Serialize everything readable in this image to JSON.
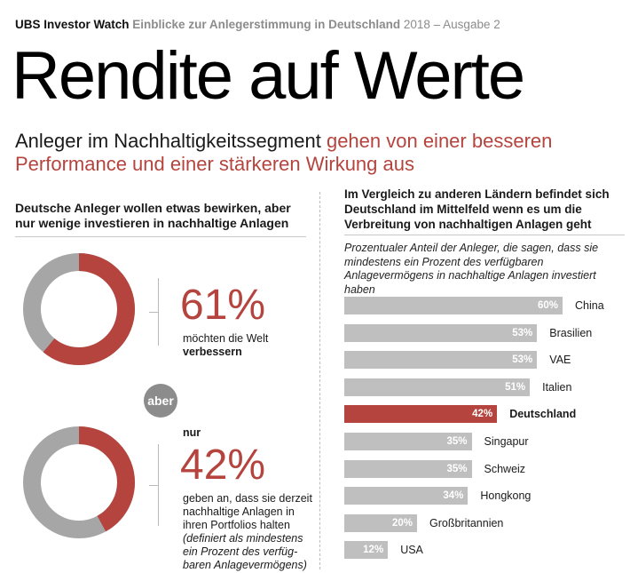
{
  "header": {
    "brand": "UBS Investor Watch",
    "topic": "Einblicke zur Anlegerstimmung in Deutschland",
    "issue": "2018 – Ausgabe 2"
  },
  "title": "Rendite auf Werte",
  "subtitle": {
    "part1": "Anleger im Nachhaltigkeitssegment ",
    "part2": "gehen von einer besseren Performance und einer stärkeren Wirkung aus"
  },
  "left": {
    "heading": "Deutsche Anleger wollen etwas bewirken, aber nur wenige investieren in nachhaltige Anlagen",
    "stat1": {
      "value": "61%",
      "text": "möchten die Welt",
      "bold": "verbessern",
      "fraction": 0.61
    },
    "connector": "aber",
    "stat2": {
      "prefix": "nur",
      "value": "42%",
      "text": "geben an, dass sie derzeit nachhaltige Anlagen in ihren Portfolios halten",
      "note": "(definiert als mindestens ein Prozent des verfüg-baren Anlagevermögens)",
      "fraction": 0.42
    }
  },
  "right": {
    "heading": "Im Vergleich zu anderen Ländern befindet sich Deutschland im Mittelfeld wenn es um die Verbreitung von nachhaltigen Anlagen geht",
    "note": "Prozentualer Anteil der Anleger, die sagen, dass sie mindestens ein Prozent des verfügbaren Anlagevermögens in nachhaltige Anlagen investiert haben"
  },
  "colors": {
    "accent": "#b5443e",
    "bar": "#bfbfbf",
    "donut_rest": "#a6a6a6",
    "aber_bg": "#8c8c8c"
  },
  "chart_data": [
    {
      "type": "pie",
      "categories": [
        "möchten die Welt verbessern",
        "Rest"
      ],
      "values": [
        61,
        39
      ]
    },
    {
      "type": "pie",
      "categories": [
        "halten nachhaltige Anlagen",
        "Rest"
      ],
      "values": [
        42,
        58
      ]
    },
    {
      "type": "bar",
      "orientation": "horizontal",
      "categories": [
        "China",
        "Brasilien",
        "VAE",
        "Italien",
        "Deutschland",
        "Singapur",
        "Schweiz",
        "Hongkong",
        "Großbritannien",
        "USA"
      ],
      "values": [
        60,
        53,
        53,
        51,
        42,
        35,
        35,
        34,
        20,
        12
      ],
      "value_labels": [
        "60%",
        "53%",
        "53%",
        "51%",
        "42%",
        "35%",
        "35%",
        "34%",
        "20%",
        "12%"
      ],
      "highlight": "Deutschland",
      "xlim": [
        0,
        100
      ]
    }
  ]
}
